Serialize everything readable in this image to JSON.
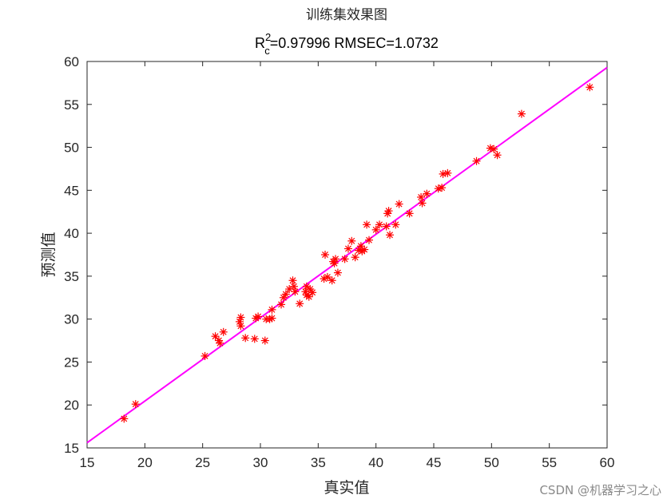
{
  "chart_data": {
    "type": "scatter",
    "title": "训练集效果图",
    "subtitle": {
      "prefix": "R",
      "superscript": "2",
      "subscript": "c",
      "text": "=0.97996  RMSEC=1.0732"
    },
    "xlabel": "真实值",
    "ylabel": "预测值",
    "xlim": [
      15,
      60
    ],
    "ylim": [
      15,
      60
    ],
    "xticks": [
      "15",
      "20",
      "25",
      "30",
      "35",
      "40",
      "45",
      "50",
      "55",
      "60"
    ],
    "yticks": [
      "15",
      "20",
      "25",
      "30",
      "35",
      "40",
      "45",
      "50",
      "55",
      "60"
    ],
    "grid": false,
    "marker_color": "#ff0000",
    "line_color": "#ff00ff",
    "fit_line": {
      "x": [
        15,
        60
      ],
      "y": [
        15.6,
        59.3
      ]
    },
    "series": [
      {
        "marker": "asterisk",
        "points": [
          [
            18.2,
            18.4
          ],
          [
            19.2,
            20.1
          ],
          [
            25.2,
            25.7
          ],
          [
            26.1,
            28.0
          ],
          [
            26.4,
            27.5
          ],
          [
            26.5,
            27.2
          ],
          [
            26.8,
            28.5
          ],
          [
            28.2,
            29.7
          ],
          [
            28.3,
            30.2
          ],
          [
            28.3,
            29.2
          ],
          [
            28.7,
            27.8
          ],
          [
            29.5,
            27.7
          ],
          [
            29.6,
            30.1
          ],
          [
            29.8,
            30.3
          ],
          [
            30.4,
            27.5
          ],
          [
            30.5,
            30.0
          ],
          [
            30.8,
            30.0
          ],
          [
            31.0,
            30.1
          ],
          [
            31.0,
            31.1
          ],
          [
            31.8,
            31.7
          ],
          [
            32.0,
            32.5
          ],
          [
            32.2,
            32.9
          ],
          [
            32.5,
            33.5
          ],
          [
            32.8,
            34.5
          ],
          [
            32.9,
            33.8
          ],
          [
            33.0,
            33.2
          ],
          [
            33.4,
            31.8
          ],
          [
            33.9,
            33.2
          ],
          [
            34.0,
            33.8
          ],
          [
            34.0,
            32.8
          ],
          [
            34.2,
            32.6
          ],
          [
            34.3,
            33.5
          ],
          [
            34.5,
            33.1
          ],
          [
            35.5,
            34.7
          ],
          [
            35.6,
            37.5
          ],
          [
            35.8,
            34.9
          ],
          [
            36.2,
            34.5
          ],
          [
            36.3,
            36.7
          ],
          [
            36.4,
            36.5
          ],
          [
            36.5,
            37.0
          ],
          [
            36.7,
            35.4
          ],
          [
            37.3,
            37.0
          ],
          [
            37.6,
            38.2
          ],
          [
            37.9,
            39.1
          ],
          [
            38.2,
            37.2
          ],
          [
            38.5,
            38.0
          ],
          [
            38.7,
            38.5
          ],
          [
            38.8,
            37.9
          ],
          [
            39.0,
            38.1
          ],
          [
            39.2,
            41.0
          ],
          [
            39.4,
            39.2
          ],
          [
            40.0,
            40.4
          ],
          [
            40.3,
            41.0
          ],
          [
            40.9,
            40.8
          ],
          [
            41.0,
            42.3
          ],
          [
            41.1,
            42.6
          ],
          [
            41.2,
            39.8
          ],
          [
            41.7,
            41.0
          ],
          [
            42.0,
            43.4
          ],
          [
            42.9,
            42.3
          ],
          [
            43.9,
            44.2
          ],
          [
            44.0,
            43.5
          ],
          [
            44.4,
            44.6
          ],
          [
            45.4,
            45.2
          ],
          [
            45.7,
            45.3
          ],
          [
            45.8,
            46.9
          ],
          [
            46.2,
            47.0
          ],
          [
            48.7,
            48.4
          ],
          [
            49.9,
            49.9
          ],
          [
            50.2,
            49.8
          ],
          [
            50.5,
            49.1
          ],
          [
            52.6,
            53.9
          ],
          [
            58.5,
            57.0
          ]
        ]
      }
    ]
  },
  "watermark": "CSDN @机器学习之心"
}
